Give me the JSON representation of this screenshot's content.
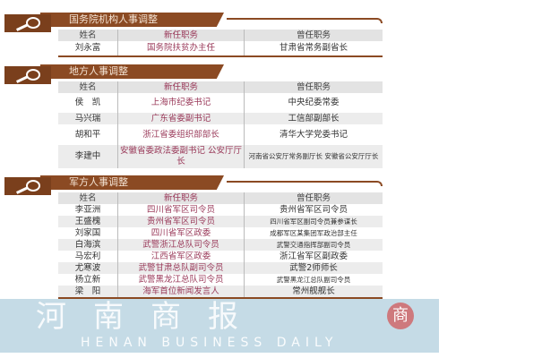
{
  "sections": [
    {
      "title": "国务院机构人事调整",
      "headers": [
        "姓名",
        "新任职务",
        "曾任职务"
      ],
      "rows": [
        [
          "刘永富",
          "国务院扶贫办主任",
          "甘肃省常务副省长"
        ]
      ]
    },
    {
      "title": "地方人事调整",
      "headers": [
        "姓名",
        "新任职务",
        "曾任职务"
      ],
      "rows": [
        [
          "侯　凯",
          "上海市纪委书记",
          "中央纪委常委"
        ],
        [
          "马兴瑞",
          "广东省委副书记",
          "工信部副部长"
        ],
        [
          "胡和平",
          "浙江省委组织部部长",
          "清华大学党委书记"
        ],
        [
          "李建中",
          "安徽省委政法委副书记 公安厅厅长",
          "河南省公安厅常务副厅长 安徽省公安厅厅长"
        ]
      ]
    },
    {
      "title": "军方人事调整",
      "headers": [
        "姓名",
        "新任职务",
        "曾任职务"
      ],
      "rows": [
        [
          "李亚洲",
          "四川省军区司令员",
          "贵州省军区司令员"
        ],
        [
          "王盛槐",
          "贵州省军区司令员",
          "四川省军区副司令员兼参谋长"
        ],
        [
          "刘家国",
          "四川省军区政委",
          "成都军区某集团军政治部主任"
        ],
        [
          "白海滨",
          "武警浙江总队司令员",
          "武警交通指挥部副司令员"
        ],
        [
          "马宏利",
          "江西省军区政委",
          "浙江省军区副政委"
        ],
        [
          "尤寒波",
          "武警甘肃总队副司令员",
          "武警2师师长"
        ],
        [
          "杨立新",
          "武警黑龙江总队司令员",
          "武警黑龙江总队副司令员"
        ],
        [
          "梁　阳",
          "海军首位新闻发言人",
          "常州舰舰长"
        ]
      ]
    }
  ],
  "watermark": {
    "text": "河南商报",
    "english": "HENAN BUSINESS DAILY",
    "seal": "商"
  },
  "colors": {
    "brown": "#8b4a23",
    "new_post": "#9a3a5a"
  }
}
